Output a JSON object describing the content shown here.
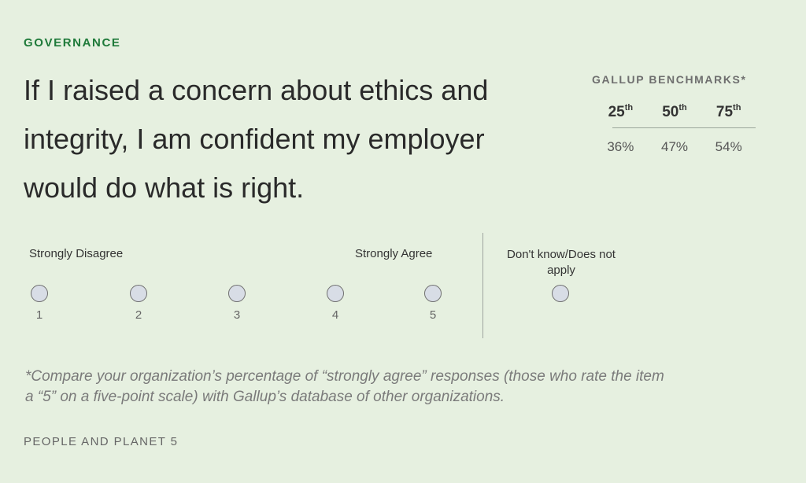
{
  "category": "GOVERNANCE",
  "question": "If I raised a concern about ethics and integrity, I am confident my employer would do what is right.",
  "benchmarks": {
    "title": "GALLUP BENCHMARKS*",
    "columns": [
      {
        "base": "25",
        "sup": "th",
        "value": "36%"
      },
      {
        "base": "50",
        "sup": "th",
        "value": "47%"
      },
      {
        "base": "75",
        "sup": "th",
        "value": "54%"
      }
    ]
  },
  "scale": {
    "left_label": "Strongly Disagree",
    "right_label": "Strongly Agree",
    "options": [
      "1",
      "2",
      "3",
      "4",
      "5"
    ],
    "na_label": "Don't know/Does not apply"
  },
  "footnote": "*Compare your organization’s percentage of “strongly agree” responses (those who rate the item a “5” on a five-point scale) with Gallup’s database of other organizations.",
  "footer": "PEOPLE AND PLANET 5"
}
